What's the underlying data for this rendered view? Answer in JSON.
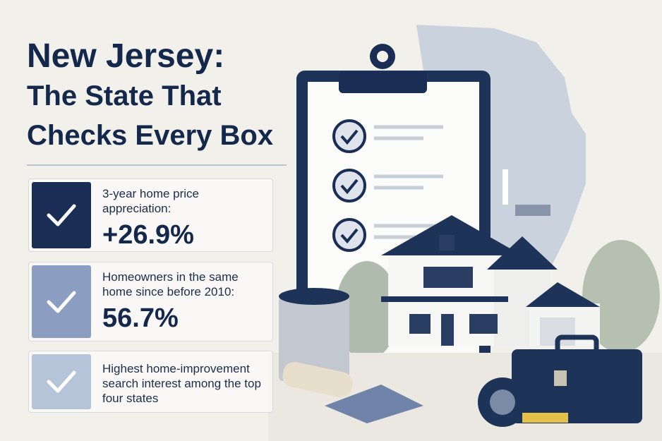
{
  "title": {
    "lines": [
      "New Jersey:",
      "The State That",
      "Checks Every Box"
    ]
  },
  "cards": [
    {
      "label": "3-year home price appreciation:",
      "value": "+26.9%"
    },
    {
      "label": "Homeowners in the same home since before 2010:",
      "value": "56.7%"
    },
    {
      "label": "Highest home-improvement search interest among the top four states"
    }
  ]
}
